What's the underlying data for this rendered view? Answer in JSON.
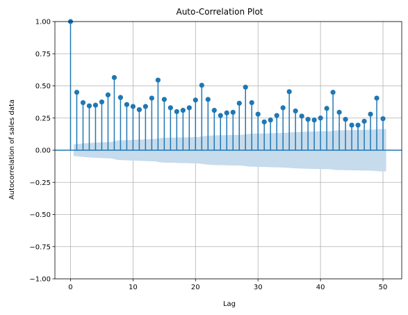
{
  "chart_data": {
    "type": "scatter",
    "title": "Auto-Correlation Plot",
    "xlabel": "Lag",
    "ylabel": "Autocorrelation of sales data",
    "xlim": [
      -2.5,
      53
    ],
    "ylim": [
      -1.0,
      1.0
    ],
    "xticks": [
      0,
      10,
      20,
      30,
      40,
      50
    ],
    "yticks": [
      -1.0,
      -0.75,
      -0.5,
      -0.25,
      0.0,
      0.25,
      0.5,
      0.75,
      1.0
    ],
    "xtick_labels": [
      "0",
      "10",
      "20",
      "30",
      "40",
      "50"
    ],
    "ytick_labels": [
      "−1.00",
      "−0.75",
      "−0.50",
      "−0.25",
      "0.00",
      "0.25",
      "0.50",
      "0.75",
      "1.00"
    ],
    "grid": true,
    "colors": {
      "stem": "#1f77b4",
      "marker": "#1f77b4",
      "band": "#c6dbec",
      "zero_line": "#1f77b4",
      "grid": "#b0b0b0"
    },
    "lags": [
      0,
      1,
      2,
      3,
      4,
      5,
      6,
      7,
      8,
      9,
      10,
      11,
      12,
      13,
      14,
      15,
      16,
      17,
      18,
      19,
      20,
      21,
      22,
      23,
      24,
      25,
      26,
      27,
      28,
      29,
      30,
      31,
      32,
      33,
      34,
      35,
      36,
      37,
      38,
      39,
      40,
      41,
      42,
      43,
      44,
      45,
      46,
      47,
      48,
      49,
      50
    ],
    "acf": [
      1.0,
      0.45,
      0.37,
      0.345,
      0.35,
      0.375,
      0.43,
      0.565,
      0.41,
      0.355,
      0.34,
      0.315,
      0.34,
      0.405,
      0.545,
      0.395,
      0.33,
      0.3,
      0.31,
      0.33,
      0.39,
      0.505,
      0.395,
      0.31,
      0.27,
      0.29,
      0.295,
      0.365,
      0.49,
      0.37,
      0.28,
      0.22,
      0.235,
      0.27,
      0.33,
      0.455,
      0.305,
      0.265,
      0.24,
      0.235,
      0.25,
      0.325,
      0.45,
      0.295,
      0.24,
      0.195,
      0.195,
      0.225,
      0.28,
      0.405,
      0.245
    ],
    "confint": [
      0.0,
      0.045,
      0.05,
      0.055,
      0.058,
      0.06,
      0.062,
      0.064,
      0.075,
      0.078,
      0.08,
      0.082,
      0.083,
      0.085,
      0.087,
      0.095,
      0.097,
      0.098,
      0.1,
      0.1,
      0.102,
      0.103,
      0.11,
      0.114,
      0.116,
      0.117,
      0.118,
      0.119,
      0.12,
      0.127,
      0.129,
      0.13,
      0.131,
      0.133,
      0.134,
      0.136,
      0.14,
      0.142,
      0.144,
      0.145,
      0.146,
      0.147,
      0.148,
      0.154,
      0.155,
      0.156,
      0.157,
      0.158,
      0.159,
      0.16,
      0.165
    ]
  }
}
